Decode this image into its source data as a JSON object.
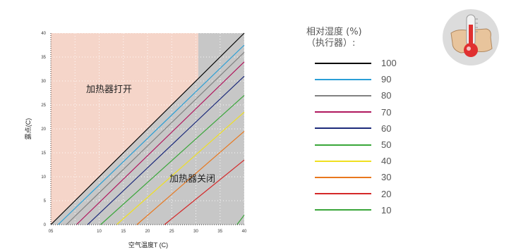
{
  "chart_data": {
    "type": "line",
    "xlabel": "空气温度T (C)",
    "ylabel": "露点(C)",
    "xlim": [
      0,
      40
    ],
    "ylim": [
      0,
      40
    ],
    "x_ticks": [
      "05",
      "10",
      "15",
      "20",
      "25",
      "30",
      "35",
      "40"
    ],
    "y_ticks": [
      "0",
      "5",
      "10",
      "15",
      "20",
      "25",
      "30",
      "35",
      "40"
    ],
    "regions": [
      {
        "label": "加热器打开",
        "color": "#f5d5c9",
        "x_range": [
          0,
          30.5
        ]
      },
      {
        "label": "加热器关闭",
        "color": "#c7c7c7",
        "x_range": [
          30.5,
          40
        ],
        "below_line": "100%"
      }
    ],
    "series": [
      {
        "name": "100",
        "color": "#000000",
        "points": [
          [
            0,
            0
          ],
          [
            40,
            40
          ]
        ]
      },
      {
        "name": "90",
        "color": "#2a9fd6",
        "points": [
          [
            1.5,
            0
          ],
          [
            40,
            37.5
          ]
        ]
      },
      {
        "name": "80",
        "color": "#808080",
        "points": [
          [
            3.2,
            0
          ],
          [
            40,
            36
          ]
        ]
      },
      {
        "name": "70",
        "color": "#b0175e",
        "points": [
          [
            5.3,
            0
          ],
          [
            40,
            34
          ]
        ]
      },
      {
        "name": "60",
        "color": "#1c2a7a",
        "points": [
          [
            7.6,
            0
          ],
          [
            40,
            31
          ]
        ]
      },
      {
        "name": "50",
        "color": "#3aa63a",
        "points": [
          [
            10.3,
            0
          ],
          [
            40,
            27
          ]
        ]
      },
      {
        "name": "40",
        "color": "#f0e020",
        "points": [
          [
            13.6,
            0
          ],
          [
            40,
            23.5
          ]
        ]
      },
      {
        "name": "30",
        "color": "#e8781e",
        "points": [
          [
            17.8,
            0
          ],
          [
            40,
            19.5
          ]
        ]
      },
      {
        "name": "20",
        "color": "#d42828",
        "points": [
          [
            23.5,
            0
          ],
          [
            40,
            13.5
          ]
        ]
      },
      {
        "name": "10",
        "color": "#3aa63a",
        "points": [
          [
            38.5,
            0
          ],
          [
            40,
            2
          ]
        ]
      }
    ]
  },
  "legend": {
    "title_line1": "相对湿度 (%)",
    "title_line2": "（执行器）:"
  },
  "icon": {
    "name": "thermometer-icon",
    "accent": "#e03030"
  }
}
